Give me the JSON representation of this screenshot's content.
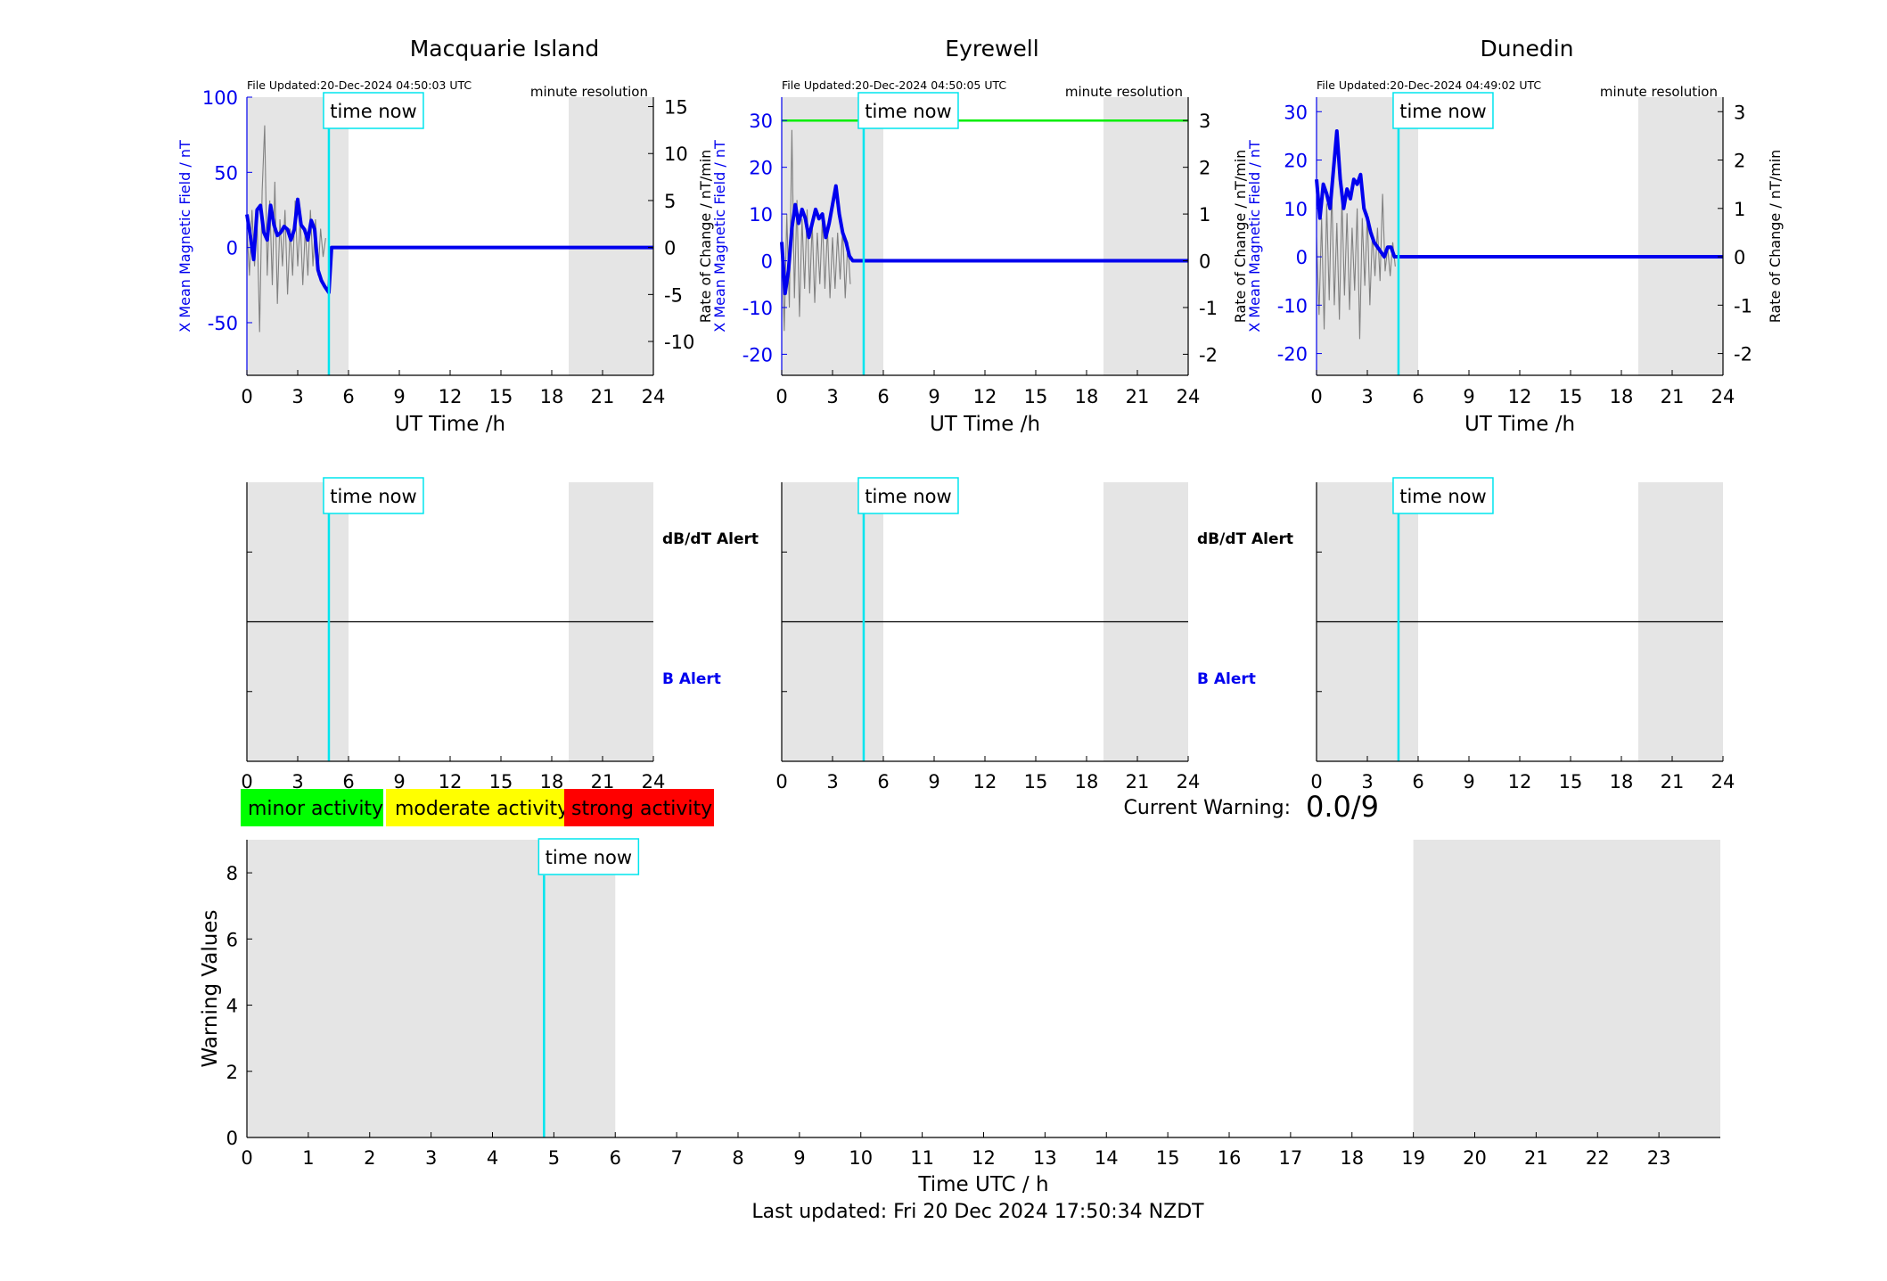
{
  "colors": {
    "night_shade": "#e5e5e5",
    "time_now": "#00e5ee",
    "x_field": "#0000ee",
    "rate": "#808080",
    "threshold": "#00ee00",
    "minor": "#00ff00",
    "moderate": "#ffff00",
    "strong": "#ff0000"
  },
  "time_now_label": "time now",
  "resolution_label": "minute resolution",
  "x_axis_label": "UT Time /h",
  "left_axis_label": "X Mean Magnetic Field / nT",
  "right_axis_label": "Rate of Change / nT/min",
  "alerts": {
    "dbdt": "dB/dT Alert",
    "b": "B Alert"
  },
  "legend": {
    "minor": "minor activity",
    "moderate": "moderate activity",
    "strong": "strong activity"
  },
  "current_warning": {
    "label": "Current Warning:",
    "value": "0.0/9"
  },
  "bottom": {
    "xlabel": "Time UTC / h",
    "ylabel": "Warning Values"
  },
  "footer": "Last updated: Fri 20 Dec 2024 17:50:34 NZDT",
  "chart_data": [
    {
      "type": "line",
      "title": "Macquarie Island",
      "file_updated": "File Updated:20-Dec-2024 04:50:03 UTC",
      "xlabel": "UT Time /h",
      "ylabel": "X Mean Magnetic Field / nT",
      "y2label": "Rate of Change / nT/min",
      "xlim": [
        0,
        24
      ],
      "ylim": [
        -85,
        100
      ],
      "y2lim": [
        -13.6,
        16.0
      ],
      "xticks": [
        0,
        3,
        6,
        9,
        12,
        15,
        18,
        21,
        24
      ],
      "yticks": [
        -50,
        0,
        50,
        100
      ],
      "y2ticks": [
        -10,
        -5,
        0,
        5,
        10,
        15
      ],
      "time_now_h": 4.84,
      "night_shading_h": [
        [
          0,
          6
        ],
        [
          19,
          24
        ]
      ],
      "series": [
        {
          "axis": "left",
          "x": [
            0,
            0.2,
            0.4,
            0.6,
            0.8,
            1.0,
            1.2,
            1.4,
            1.6,
            1.8,
            2.0,
            2.2,
            2.4,
            2.6,
            2.8,
            3.0,
            3.2,
            3.4,
            3.6,
            3.8,
            4.0,
            4.2,
            4.4,
            4.6,
            4.84,
            5,
            24
          ],
          "y": [
            22,
            8,
            -8,
            25,
            28,
            10,
            5,
            28,
            15,
            8,
            10,
            14,
            12,
            5,
            12,
            32,
            15,
            12,
            5,
            18,
            12,
            -15,
            -22,
            -26,
            -30,
            0,
            0
          ]
        },
        {
          "axis": "right",
          "x": [
            0,
            0.15,
            0.3,
            0.45,
            0.6,
            0.75,
            0.9,
            1.05,
            1.2,
            1.35,
            1.5,
            1.65,
            1.8,
            1.95,
            2.1,
            2.25,
            2.4,
            2.55,
            2.7,
            2.85,
            3.0,
            3.15,
            3.3,
            3.45,
            3.6,
            3.75,
            3.9,
            4.05,
            4.2,
            4.35,
            4.5,
            4.65
          ],
          "y": [
            2,
            -3,
            4,
            -2,
            3,
            -9,
            6,
            13,
            -3,
            5,
            -4,
            7,
            -6,
            3,
            -2,
            4,
            -5,
            2,
            -3,
            5,
            -2,
            3,
            -4,
            2,
            -3,
            4,
            -2,
            3,
            -3,
            2,
            -1,
            1
          ]
        }
      ]
    },
    {
      "type": "line",
      "title": "Eyrewell",
      "file_updated": "File Updated:20-Dec-2024 04:50:05 UTC",
      "xlabel": "UT Time /h",
      "ylabel": "X Mean Magnetic Field / nT",
      "y2label": "Rate of Change / nT/min",
      "xlim": [
        0,
        24
      ],
      "ylim": [
        -24.5,
        35
      ],
      "y2lim": [
        -2.45,
        3.5
      ],
      "xticks": [
        0,
        3,
        6,
        9,
        12,
        15,
        18,
        21,
        24
      ],
      "yticks": [
        -20,
        -10,
        0,
        10,
        20,
        30
      ],
      "y2ticks": [
        -2,
        -1,
        0,
        1,
        2,
        3
      ],
      "time_now_h": 4.84,
      "night_shading_h": [
        [
          0,
          6
        ],
        [
          19,
          24
        ]
      ],
      "threshold_y": 30,
      "series": [
        {
          "axis": "left",
          "x": [
            0,
            0.2,
            0.4,
            0.6,
            0.8,
            1.0,
            1.2,
            1.4,
            1.6,
            1.8,
            2.0,
            2.2,
            2.4,
            2.6,
            2.8,
            3.0,
            3.2,
            3.4,
            3.6,
            3.8,
            4.0,
            4.2,
            4.84,
            24
          ],
          "y": [
            4,
            -7,
            -2,
            7,
            12,
            8,
            11,
            9,
            5,
            8,
            11,
            9,
            10,
            5,
            8,
            12,
            16,
            10,
            6,
            4,
            1,
            0,
            0,
            0
          ]
        },
        {
          "axis": "right",
          "x": [
            0,
            0.15,
            0.3,
            0.45,
            0.6,
            0.75,
            0.9,
            1.05,
            1.2,
            1.35,
            1.5,
            1.65,
            1.8,
            1.95,
            2.1,
            2.25,
            2.4,
            2.55,
            2.7,
            2.85,
            3.0,
            3.15,
            3.3,
            3.45,
            3.6,
            3.75,
            3.9,
            4.05
          ],
          "y": [
            0.5,
            -1.5,
            1.0,
            -1.0,
            2.8,
            -0.8,
            1.3,
            -1.2,
            0.9,
            -0.6,
            1.1,
            -0.7,
            0.8,
            -0.9,
            0.6,
            -0.5,
            0.9,
            -0.6,
            0.7,
            -0.8,
            0.5,
            -0.6,
            0.6,
            -0.4,
            0.7,
            -0.8,
            0.4,
            -0.5
          ]
        }
      ]
    },
    {
      "type": "line",
      "title": "Dunedin",
      "file_updated": "File Updated:20-Dec-2024 04:49:02 UTC",
      "xlabel": "UT Time /h",
      "ylabel": "X Mean Magnetic Field / nT",
      "y2label": "Rate of Change / nT/min",
      "xlim": [
        0,
        24
      ],
      "ylim": [
        -24.5,
        33
      ],
      "y2lim": [
        -2.45,
        3.3
      ],
      "xticks": [
        0,
        3,
        6,
        9,
        12,
        15,
        18,
        21,
        24
      ],
      "yticks": [
        -20,
        -10,
        0,
        10,
        20,
        30
      ],
      "y2ticks": [
        -2,
        -1,
        0,
        1,
        2,
        3
      ],
      "time_now_h": 4.84,
      "night_shading_h": [
        [
          0,
          6
        ],
        [
          19,
          24
        ]
      ],
      "series": [
        {
          "axis": "left",
          "x": [
            0,
            0.2,
            0.4,
            0.6,
            0.8,
            1.0,
            1.2,
            1.4,
            1.6,
            1.8,
            2.0,
            2.2,
            2.4,
            2.6,
            2.8,
            3.0,
            3.2,
            3.4,
            3.6,
            3.8,
            4.0,
            4.2,
            4.4,
            4.6,
            4.84,
            24
          ],
          "y": [
            16,
            8,
            15,
            13,
            10,
            18,
            26,
            16,
            10,
            14,
            12,
            16,
            15,
            17,
            10,
            8,
            5,
            3,
            2,
            1,
            0,
            2,
            2,
            0,
            0,
            0
          ]
        },
        {
          "axis": "right",
          "x": [
            0,
            0.15,
            0.3,
            0.45,
            0.6,
            0.75,
            0.9,
            1.05,
            1.2,
            1.35,
            1.5,
            1.65,
            1.8,
            1.95,
            2.1,
            2.25,
            2.4,
            2.55,
            2.7,
            2.85,
            3.0,
            3.15,
            3.3,
            3.45,
            3.6,
            3.75,
            3.9,
            4.05,
            4.2,
            4.35,
            4.5,
            4.65
          ],
          "y": [
            0.4,
            -1.2,
            0.8,
            -1.5,
            1.1,
            -0.9,
            1.4,
            -1.0,
            0.7,
            -1.3,
            1.2,
            -0.8,
            0.9,
            -1.1,
            0.6,
            -0.7,
            1.0,
            -1.7,
            0.8,
            -0.6,
            0.9,
            -1.0,
            0.5,
            -0.4,
            0.6,
            -0.5,
            1.3,
            -0.3,
            0.2,
            -0.4,
            0.3,
            -0.2
          ]
        }
      ]
    },
    {
      "type": "line",
      "xlabel": "Time UTC / h",
      "ylabel": "Warning Values",
      "xlim": [
        0,
        24
      ],
      "ylim": [
        0,
        9
      ],
      "xticks": [
        0,
        1,
        2,
        3,
        4,
        5,
        6,
        7,
        8,
        9,
        10,
        11,
        12,
        13,
        14,
        15,
        16,
        17,
        18,
        19,
        20,
        21,
        22,
        23
      ],
      "yticks": [
        0,
        2,
        4,
        6,
        8
      ],
      "time_now_h": 4.84,
      "night_shading_h": [
        [
          0,
          6
        ],
        [
          19,
          24
        ]
      ],
      "current_value": 0.0
    }
  ]
}
